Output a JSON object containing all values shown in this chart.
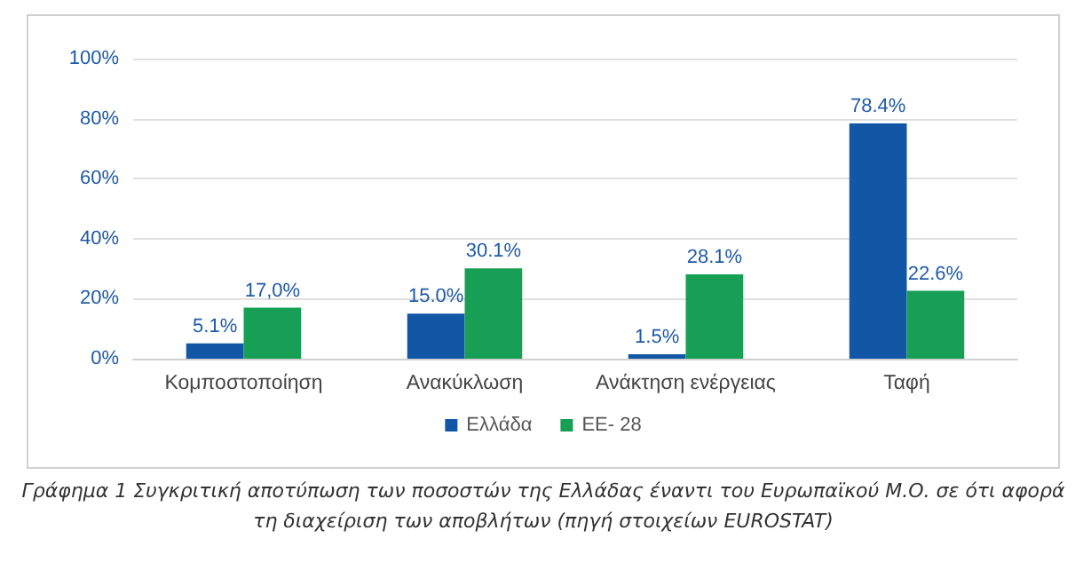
{
  "chart_data": {
    "type": "bar",
    "categories": [
      "Κομποστοποίηση",
      "Ανακύκλωση",
      "Ανάκτηση ενέργειας",
      "Ταφή"
    ],
    "series": [
      {
        "name": "Ελλάδα",
        "color": "#1157a6",
        "values": [
          5.1,
          15.0,
          1.5,
          78.4
        ],
        "value_labels": [
          "5.1%",
          "15.0%",
          "1.5%",
          "78.4%"
        ]
      },
      {
        "name": "ΕΕ- 28",
        "color": "#17a055",
        "values": [
          17.0,
          30.1,
          28.1,
          22.6
        ],
        "value_labels": [
          "17,0%",
          "30.1%",
          "28.1%",
          "22.6%"
        ]
      }
    ],
    "ylim": [
      0,
      100
    ],
    "yticks": [
      {
        "value": 0,
        "label": "0%"
      },
      {
        "value": 20,
        "label": "20%"
      },
      {
        "value": 40,
        "label": "40%"
      },
      {
        "value": 60,
        "label": "60%"
      },
      {
        "value": 80,
        "label": "80%"
      },
      {
        "value": 100,
        "label": "100%"
      }
    ],
    "grid": "y",
    "legend": "bottom",
    "annotations": [
      "Γράφημα 1 Συγκριτική αποτύπωση των ποσοστών της Ελλάδας έναντι του Ευρωπαϊκού Μ.Ο. σε ότι αφορά τη διαχείριση των αποβλήτων (πηγή στοιχείων EUROSTAT)"
    ]
  }
}
